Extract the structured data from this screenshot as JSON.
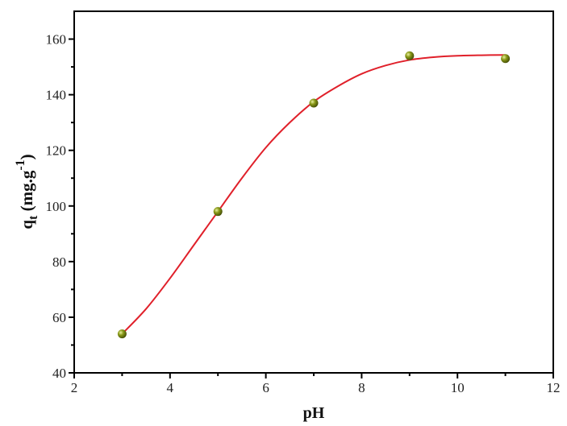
{
  "chart_data": {
    "type": "scatter",
    "title": "",
    "xlabel": "pH",
    "ylabel": {
      "main": "q",
      "sub": "t",
      "unit": " (mg.g",
      "sup": "-1",
      "close": ")"
    },
    "xlim": [
      2,
      12
    ],
    "ylim": [
      40,
      170
    ],
    "xticks": [
      2,
      4,
      6,
      8,
      10,
      12
    ],
    "yticks": [
      40,
      60,
      80,
      100,
      120,
      140,
      160
    ],
    "grid": false,
    "points": {
      "x": [
        3,
        5,
        7,
        9,
        11
      ],
      "y": [
        54,
        98,
        137,
        154,
        153
      ],
      "color": "#7a8a10"
    },
    "fit_curve": {
      "x": [
        3,
        3.5,
        4,
        4.5,
        5,
        5.5,
        6,
        6.5,
        7,
        7.5,
        8,
        8.5,
        9,
        9.5,
        10,
        10.5,
        11
      ],
      "y": [
        54,
        63,
        74,
        86,
        98,
        110,
        121,
        130,
        137.5,
        143,
        147.5,
        150.5,
        152.5,
        153.5,
        154,
        154.2,
        154.3
      ],
      "color": "#e0202a"
    }
  }
}
